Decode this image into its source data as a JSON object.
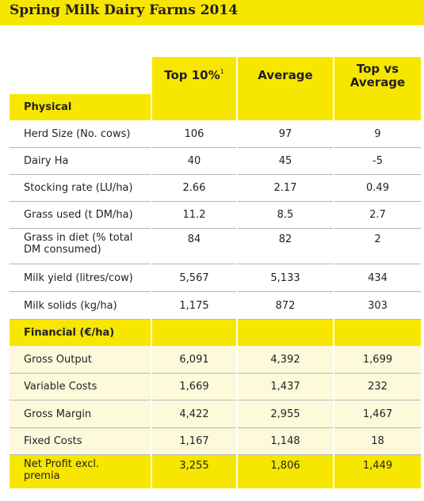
{
  "title": "Spring Milk Dairy Farms 2014",
  "columns": {
    "top10": "Top 10%",
    "top10_note": "1",
    "average": "Average",
    "top_vs_average": "Top vs\nAverage"
  },
  "sections": {
    "physical": "Physical",
    "financial": "Financial (€/ha)"
  },
  "physical_rows": [
    {
      "label": "Herd Size (No. cows)",
      "top10": "106",
      "average": "97",
      "diff": "9"
    },
    {
      "label": "Dairy Ha",
      "top10": "40",
      "average": "45",
      "diff": "-5"
    },
    {
      "label": "Stocking rate (LU/ha)",
      "top10": "2.66",
      "average": "2.17",
      "diff": "0.49"
    },
    {
      "label": "Grass used (t DM/ha)",
      "top10": "11.2",
      "average": "8.5",
      "diff": "2.7"
    },
    {
      "label": "Grass in diet (% total\nDM consumed)",
      "top10": "84",
      "average": "82",
      "diff": "2"
    },
    {
      "label": "Milk yield (litres/cow)",
      "top10": "5,567",
      "average": "5,133",
      "diff": "434"
    },
    {
      "label": "Milk solids (kg/ha)",
      "top10": "1,175",
      "average": "872",
      "diff": "303"
    }
  ],
  "financial_rows": [
    {
      "label": "Gross Output",
      "top10": "6,091",
      "average": "4,392",
      "diff": "1,699"
    },
    {
      "label": "Variable Costs",
      "top10": "1,669",
      "average": "1,437",
      "diff": "232"
    },
    {
      "label": "Gross Margin",
      "top10": "4,422",
      "average": "2,955",
      "diff": "1,467"
    },
    {
      "label": "Fixed Costs",
      "top10": "1,167",
      "average": "1,148",
      "diff": "18"
    },
    {
      "label": "Net Profit excl.\npremia",
      "top10": "3,255",
      "average": "1,806",
      "diff": "1,449"
    }
  ],
  "colors": {
    "accent_yellow": "#f7e600",
    "pale_yellow": "#fdfadb",
    "rule_grey": "#b7b7b7"
  }
}
